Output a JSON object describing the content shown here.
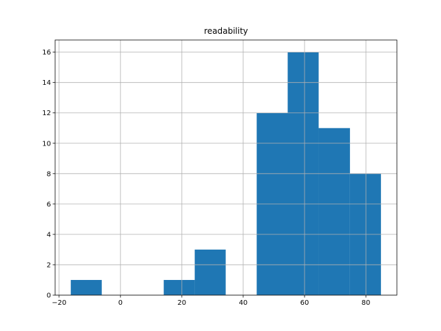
{
  "chart_data": {
    "type": "histogram",
    "title": "readability",
    "bins": [
      -16.2,
      -6.1,
      4.0,
      14.1,
      24.2,
      34.3,
      44.4,
      54.5,
      64.6,
      74.8,
      84.9
    ],
    "counts": [
      1,
      0,
      0,
      1,
      3,
      0,
      12,
      16,
      11,
      8
    ],
    "color": "#1f77b4",
    "xlim": [
      -21.3,
      90.1
    ],
    "ylim": [
      0,
      16.8
    ],
    "xticks": [
      {
        "value": -20,
        "label": "−20"
      },
      0,
      20,
      40,
      60,
      80
    ],
    "yticks": [
      0,
      2,
      4,
      6,
      8,
      10,
      12,
      14,
      16
    ],
    "grid": true
  }
}
